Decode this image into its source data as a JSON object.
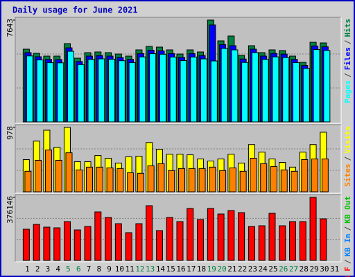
{
  "chart_data": [
    {
      "type": "bar",
      "title": "Daily usage for June 2021",
      "categories": [
        "1",
        "2",
        "3",
        "4",
        "5",
        "6",
        "7",
        "8",
        "9",
        "10",
        "11",
        "12",
        "13",
        "14",
        "15",
        "16",
        "17",
        "18",
        "19",
        "20",
        "21",
        "22",
        "23",
        "24",
        "25",
        "26",
        "27",
        "28",
        "29",
        "30",
        "31"
      ],
      "weekend_categories": [
        "5",
        "6",
        "12",
        "13",
        "19",
        "20",
        "26",
        "27"
      ],
      "weekend_color": "#008040",
      "ylim": [
        0,
        7643
      ],
      "yticks": [
        7643
      ],
      "legend_separator": "/",
      "legend_reverse": true,
      "series": [
        {
          "name": "Hits",
          "color": "#008040",
          "values": [
            5459,
            5147,
            4939,
            4939,
            5875,
            4783,
            5199,
            5251,
            5199,
            5095,
            4939,
            5407,
            5667,
            5615,
            5407,
            5095,
            5407,
            5251,
            7643,
            6083,
            6447,
            4991,
            5719,
            5199,
            5407,
            5355,
            4939,
            4471,
            5979,
            5927,
            null
          ]
        },
        {
          "name": "Files",
          "color": "#0000ff",
          "values": [
            5200,
            4890,
            4690,
            4680,
            5560,
            4530,
            4940,
            4980,
            4940,
            4830,
            4690,
            5130,
            5380,
            5330,
            5130,
            4840,
            5130,
            4980,
            7279,
            5800,
            5719,
            4720,
            5460,
            4940,
            5140,
            5090,
            4690,
            4230,
            5700,
            5640,
            null
          ]
        },
        {
          "name": "Pages",
          "color": "#00ffff",
          "values": [
            4950,
            4650,
            4440,
            4430,
            5300,
            4300,
            4690,
            4730,
            4700,
            4590,
            4450,
            4880,
            5120,
            5080,
            4870,
            4600,
            4870,
            4730,
            4575,
            5510,
            5407,
            4460,
            5200,
            4690,
            4880,
            4830,
            4450,
            4010,
            5430,
            5360,
            null
          ]
        }
      ]
    },
    {
      "type": "bar",
      "ylim": [
        0,
        978
      ],
      "yticks": [
        978
      ],
      "legend_separator": "/",
      "legend_reverse": true,
      "series": [
        {
          "name": "Visits",
          "color": "#ffff00",
          "values": [
            489,
            770,
            936,
            676,
            978,
            458,
            458,
            551,
            510,
            437,
            531,
            541,
            749,
            645,
            572,
            572,
            562,
            499,
            468,
            499,
            572,
            437,
            718,
            603,
            499,
            447,
            375,
            603,
            718,
            905,
            null
          ]
        },
        {
          "name": "Sites",
          "color": "#ff8000",
          "values": [
            312,
            479,
            635,
            479,
            593,
            333,
            375,
            375,
            364,
            354,
            291,
            281,
            395,
            427,
            323,
            354,
            354,
            354,
            375,
            323,
            364,
            312,
            510,
            427,
            385,
            333,
            312,
            489,
            499,
            499,
            null
          ]
        }
      ]
    },
    {
      "type": "bar",
      "ylim": [
        0,
        376146
      ],
      "yticks": [
        376146
      ],
      "legend_separator": "/",
      "legend_reverse": false,
      "series": [
        {
          "name": "KB F",
          "color": "#ff0000",
          "values": [
            185985,
            214916,
            198384,
            194251,
            231448,
            181852,
            202517,
            289310,
            256246,
            219049,
            165320,
            219049,
            326507,
            177719,
            256246,
            231448,
            309975,
            243847,
            309975,
            276911,
            297576,
            285177,
            202517,
            206650,
            281044,
            206650,
            231448,
            231448,
            376146,
            247980,
            null
          ]
        },
        {
          "name": "KB In",
          "color": "#0080ff",
          "values": [
            0,
            0,
            0,
            0,
            0,
            0,
            0,
            0,
            0,
            0,
            0,
            0,
            0,
            0,
            0,
            0,
            0,
            0,
            0,
            0,
            0,
            0,
            0,
            0,
            0,
            0,
            0,
            0,
            0,
            0,
            null
          ]
        },
        {
          "name": "KB Out",
          "color": "#00c000",
          "values": [
            0,
            0,
            0,
            0,
            0,
            0,
            0,
            0,
            0,
            0,
            0,
            0,
            0,
            0,
            0,
            0,
            0,
            0,
            0,
            0,
            0,
            0,
            0,
            0,
            0,
            0,
            0,
            0,
            0,
            0,
            null
          ]
        }
      ]
    }
  ]
}
